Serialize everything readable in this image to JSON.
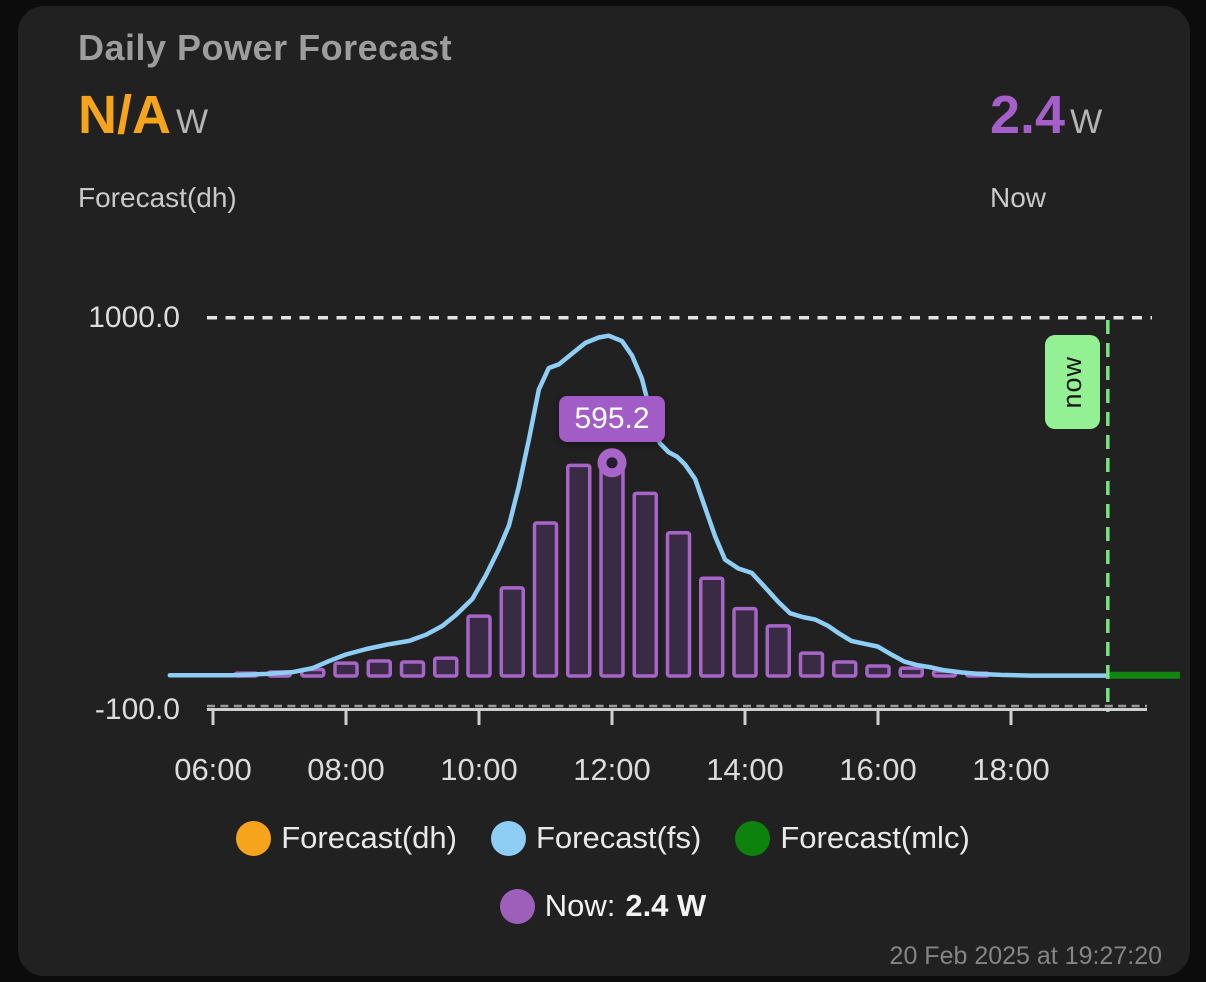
{
  "card": {
    "title": "Daily Power Forecast",
    "left_stat": {
      "value": "N/A",
      "unit": "W",
      "label": "Forecast(dh)"
    },
    "right_stat": {
      "value": "2.4",
      "unit": "W",
      "label": "Now"
    },
    "timestamp": "20 Feb 2025 at 19:27:20"
  },
  "legend": {
    "series": [
      {
        "name": "Forecast(dh)",
        "color": "#f6a41b"
      },
      {
        "name": "Forecast(fs)",
        "color": "#8ecdf4"
      },
      {
        "name": "Forecast(mlc)",
        "color": "#0d830d"
      }
    ],
    "now_item": {
      "prefix": "Now:",
      "value": "2.4 W",
      "color": "#9e5fba"
    }
  },
  "chart_data": {
    "type": "mixed",
    "title": "Daily Power Forecast",
    "grid": "off",
    "y_axis": {
      "top": {
        "value": 1000.0,
        "label": "1000.0"
      },
      "bottom": {
        "value": -100.0,
        "label": "-100.0"
      }
    },
    "x_axis": {
      "ticks": [
        {
          "hour": 6,
          "label": "06:00"
        },
        {
          "hour": 8,
          "label": "08:00"
        },
        {
          "hour": 10,
          "label": "10:00"
        },
        {
          "hour": 12,
          "label": "12:00"
        },
        {
          "hour": 14,
          "label": "14:00"
        },
        {
          "hour": 16,
          "label": "16:00"
        },
        {
          "hour": 18,
          "label": "18:00"
        }
      ]
    },
    "bar_series": {
      "name": "Now",
      "stroke": "#a765c8",
      "fill": "#3a2b45",
      "start_hour": 6.5,
      "interval_hours": 0.5,
      "values": [
        8,
        11,
        18,
        36,
        42,
        39,
        50,
        167,
        246,
        427,
        588,
        595.2,
        510,
        400,
        273,
        188,
        140,
        64,
        39,
        28,
        22,
        14,
        8
      ]
    },
    "line_series": {
      "name": "Forecast(fs)",
      "color": "#8ecdf4",
      "points": [
        [
          5.35,
          2
        ],
        [
          6.3,
          2
        ],
        [
          6.8,
          6
        ],
        [
          7.2,
          11
        ],
        [
          7.5,
          22
        ],
        [
          7.75,
          42
        ],
        [
          8.0,
          60
        ],
        [
          8.3,
          75
        ],
        [
          8.6,
          87
        ],
        [
          8.95,
          98
        ],
        [
          9.2,
          115
        ],
        [
          9.45,
          140
        ],
        [
          9.65,
          170
        ],
        [
          9.9,
          215
        ],
        [
          10.1,
          280
        ],
        [
          10.3,
          355
        ],
        [
          10.45,
          420
        ],
        [
          10.6,
          530
        ],
        [
          10.75,
          660
        ],
        [
          10.9,
          800
        ],
        [
          11.05,
          860
        ],
        [
          11.2,
          870
        ],
        [
          11.4,
          900
        ],
        [
          11.6,
          930
        ],
        [
          11.8,
          945
        ],
        [
          11.95,
          950
        ],
        [
          12.15,
          935
        ],
        [
          12.3,
          895
        ],
        [
          12.45,
          830
        ],
        [
          12.6,
          720
        ],
        [
          12.72,
          650
        ],
        [
          12.85,
          625
        ],
        [
          12.98,
          612
        ],
        [
          13.1,
          590
        ],
        [
          13.25,
          550
        ],
        [
          13.4,
          470
        ],
        [
          13.55,
          390
        ],
        [
          13.7,
          325
        ],
        [
          13.9,
          300
        ],
        [
          14.1,
          288
        ],
        [
          14.3,
          248
        ],
        [
          14.5,
          207
        ],
        [
          14.68,
          175
        ],
        [
          14.88,
          164
        ],
        [
          15.05,
          158
        ],
        [
          15.25,
          140
        ],
        [
          15.42,
          118
        ],
        [
          15.6,
          98
        ],
        [
          15.8,
          90
        ],
        [
          16.0,
          82
        ],
        [
          16.2,
          60
        ],
        [
          16.4,
          40
        ],
        [
          16.6,
          30
        ],
        [
          16.8,
          24
        ],
        [
          17.0,
          16
        ],
        [
          17.25,
          10
        ],
        [
          17.5,
          6
        ],
        [
          17.85,
          3
        ],
        [
          18.3,
          1
        ],
        [
          19.45,
          1
        ]
      ]
    },
    "mlc_series": {
      "name": "Forecast(mlc)",
      "color": "#128412",
      "points": [
        [
          19.46,
          2
        ],
        [
          20.54,
          2
        ]
      ]
    },
    "marker": {
      "hour": 12,
      "value": 595.2,
      "ring_color": "#a765c8",
      "core_color": "#261d32"
    },
    "tooltip": {
      "text": "595.2",
      "bg": "#a15cc6"
    },
    "now_annotation": {
      "hour": 19.456,
      "label": "now",
      "line_color": "#79e37f",
      "box_color": "#93f093"
    },
    "max_annotation": {
      "value": 1000,
      "line_color": "#e3e3e3"
    }
  }
}
